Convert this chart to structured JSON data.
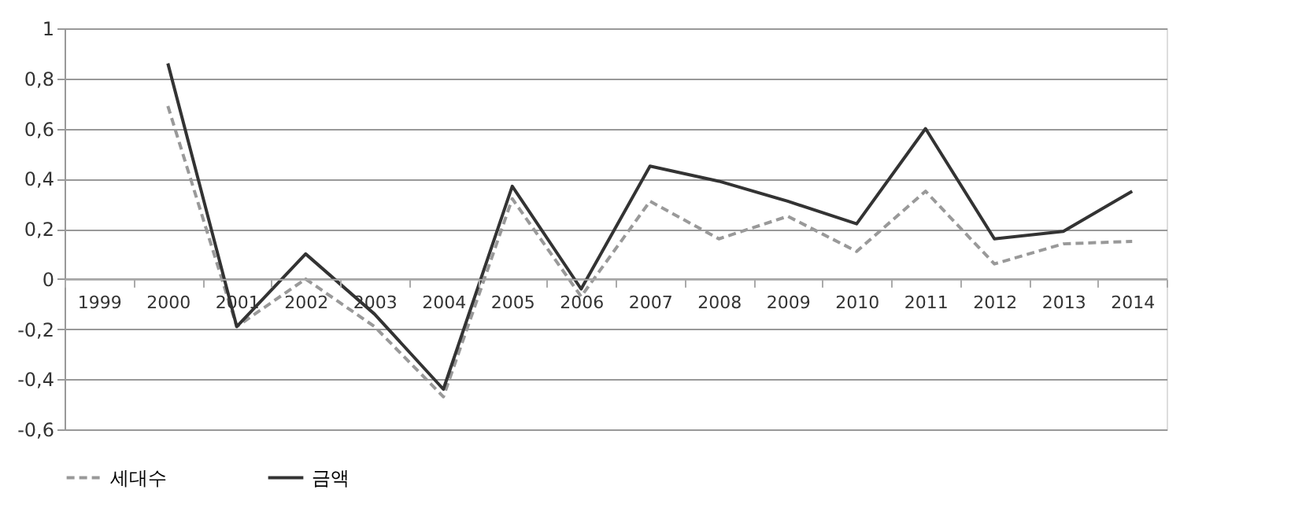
{
  "chart_data": {
    "type": "line",
    "categories": [
      "1999",
      "2000",
      "2001",
      "2002",
      "2003",
      "2004",
      "2005",
      "2006",
      "2007",
      "2008",
      "2009",
      "2010",
      "2011",
      "2012",
      "2013",
      "2014"
    ],
    "series": [
      {
        "name": "세대수",
        "color": "#999999",
        "line_style": "dashed",
        "values": [
          null,
          0.69,
          -0.19,
          0.0,
          -0.19,
          -0.47,
          0.32,
          -0.07,
          0.31,
          0.16,
          0.25,
          0.11,
          0.35,
          0.06,
          0.14,
          0.15
        ]
      },
      {
        "name": "금액",
        "color": "#333333",
        "line_style": "solid",
        "values": [
          null,
          0.86,
          -0.19,
          0.1,
          -0.14,
          -0.44,
          0.37,
          -0.04,
          0.45,
          0.39,
          0.31,
          0.22,
          0.6,
          0.16,
          0.19,
          0.35
        ]
      }
    ],
    "ylim": [
      -0.6,
      1
    ],
    "yticks": [
      {
        "value": -0.6,
        "label": "-0,6"
      },
      {
        "value": -0.4,
        "label": "-0,4"
      },
      {
        "value": -0.2,
        "label": "-0,2"
      },
      0,
      {
        "value": 0.2,
        "label": "0,2"
      },
      {
        "value": 0.4,
        "label": "0,4"
      },
      {
        "value": 0.6,
        "label": "0,6"
      },
      {
        "value": 0.8,
        "label": "0,8"
      },
      1
    ],
    "grid": "y",
    "legend": "bottom",
    "marker": "none"
  }
}
